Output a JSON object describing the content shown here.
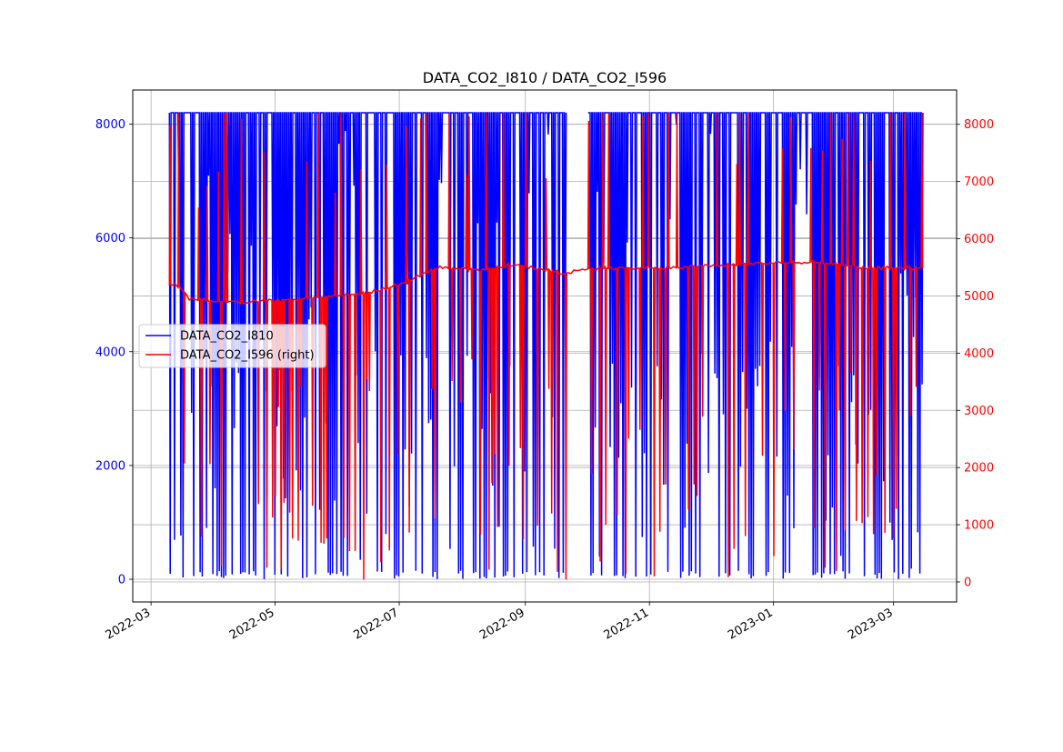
{
  "chart_data": {
    "type": "line",
    "title": "DATA_CO2_I810 / DATA_CO2_I596",
    "xlabel": "",
    "ylabel_left": "",
    "ylabel_right": "",
    "x_ticks": [
      "2022-03",
      "2022-05",
      "2022-07",
      "2022-09",
      "2022-11",
      "2023-01",
      "2023-03"
    ],
    "x_range": [
      "2022-02-20",
      "2023-04-01"
    ],
    "y_left_ticks": [
      0,
      2000,
      4000,
      6000,
      8000
    ],
    "y_left_range": [
      -400,
      8600
    ],
    "y_right_ticks": [
      0,
      1000,
      2000,
      3000,
      4000,
      5000,
      6000,
      7000,
      8000
    ],
    "y_right_range": [
      -350,
      8600
    ],
    "grid": true,
    "legend_position": "center-left",
    "colors": {
      "left_axis": "#0000ff",
      "right_axis": "#ff0000"
    },
    "series": [
      {
        "name": "DATA_CO2_I810",
        "axis": "left",
        "color": "#0000ff",
        "data_start": "2022-03-10",
        "data_end": "2023-03-15",
        "upper_value": 8200,
        "lower_value": 0,
        "gap": [
          "2022-09-21",
          "2022-10-01"
        ],
        "x": [
          "2022-03-10",
          "2022-04-15",
          "2022-06-01",
          "2022-07-15",
          "2022-09-01",
          "2022-09-21",
          "2022-10-01",
          "2022-11-15",
          "2023-01-01",
          "2023-02-15",
          "2023-03-15"
        ],
        "y": [
          8200,
          8200,
          8200,
          8200,
          8200,
          8200,
          8200,
          8200,
          8200,
          8200,
          8200
        ]
      },
      {
        "name": "DATA_CO2_I596 (right)",
        "axis": "right",
        "color": "#ff0000",
        "data_start": "2022-03-10",
        "data_end": "2023-03-15",
        "x": [
          "2022-03-13",
          "2022-03-20",
          "2022-04-10",
          "2022-05-15",
          "2022-06-15",
          "2022-07-01",
          "2022-07-20",
          "2022-08-10",
          "2022-08-25",
          "2022-09-21",
          "2022-10-01",
          "2022-11-15",
          "2022-12-15",
          "2023-01-20",
          "2023-02-15",
          "2023-03-15"
        ],
        "y": [
          5200,
          4950,
          4880,
          4950,
          5050,
          5200,
          5500,
          5450,
          5550,
          5400,
          5480,
          5500,
          5550,
          5600,
          5500,
          5480
        ]
      }
    ]
  }
}
